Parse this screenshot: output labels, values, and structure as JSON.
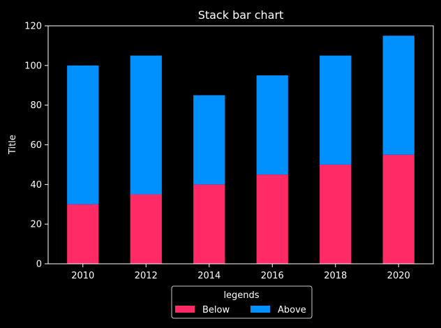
{
  "chart_data": {
    "type": "bar",
    "stacked": true,
    "title": "Stack bar chart",
    "xlabel": "",
    "ylabel": "Title",
    "categories": [
      "2010",
      "2012",
      "2014",
      "2016",
      "2018",
      "2020"
    ],
    "series": [
      {
        "name": "Below",
        "values": [
          30,
          35,
          40,
          45,
          50,
          55
        ],
        "color": "#ff2a66"
      },
      {
        "name": "Above",
        "values": [
          70,
          70,
          45,
          50,
          55,
          60
        ],
        "color": "#0091ff"
      }
    ],
    "ylim": [
      0,
      120
    ],
    "yticks": [
      0,
      20,
      40,
      60,
      80,
      100,
      120
    ],
    "grid": false,
    "legend": {
      "title": "legends",
      "placement": "bottom-center"
    },
    "colors": {
      "background": "#000000",
      "axis": "#ffffff",
      "text": "#ffffff"
    }
  }
}
